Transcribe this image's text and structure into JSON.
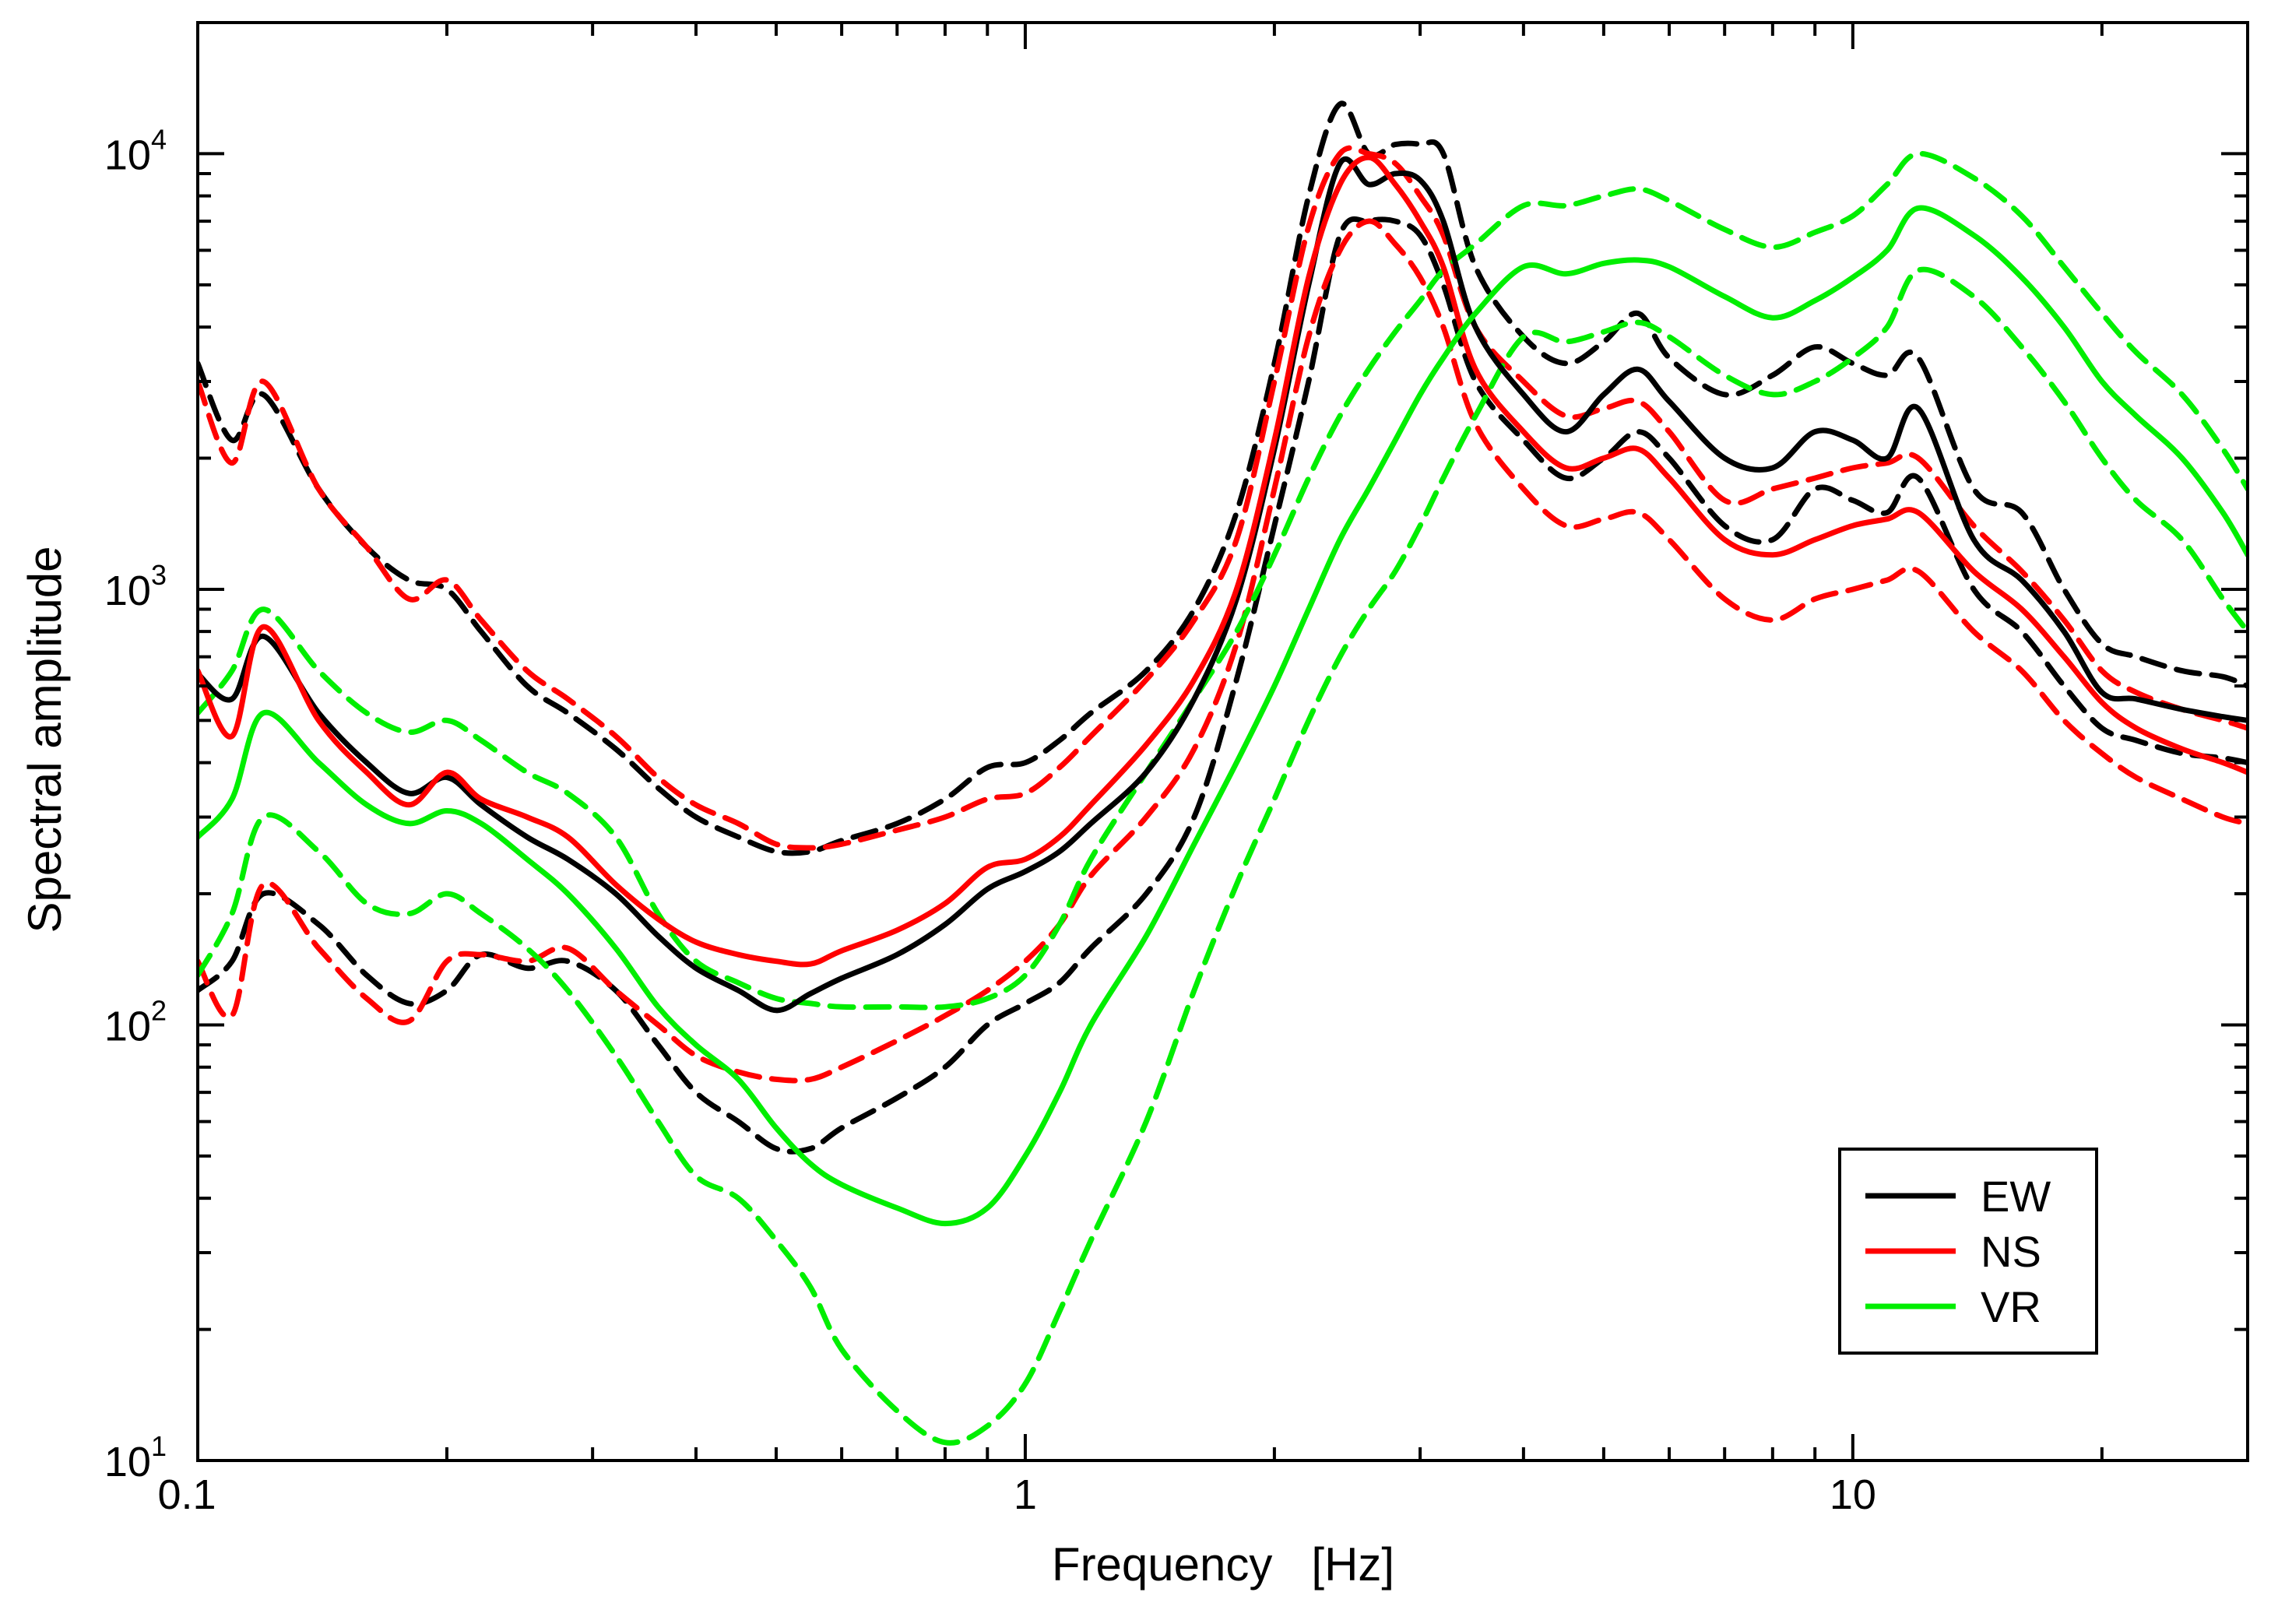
{
  "chart_data": {
    "type": "line",
    "xscale": "log",
    "yscale": "log",
    "xlabel": "Frequency   [Hz]",
    "ylabel": "Spectral amplitude",
    "xlim": [
      0.1,
      30
    ],
    "ylim": [
      10,
      20000
    ],
    "x_ticks": [
      {
        "value": 0.1,
        "label": "0.1"
      },
      {
        "value": 1,
        "label": "1"
      },
      {
        "value": 10,
        "label": "10"
      }
    ],
    "y_ticks": [
      {
        "value": 10,
        "base": "10",
        "exp": "1"
      },
      {
        "value": 100,
        "base": "10",
        "exp": "2"
      },
      {
        "value": 1000,
        "base": "10",
        "exp": "3"
      },
      {
        "value": 10000,
        "base": "10",
        "exp": "4"
      }
    ],
    "x_corner_label": "0.1",
    "y_corner_label": "10",
    "legend": [
      {
        "label": "EW",
        "color": "#000000"
      },
      {
        "label": "NS",
        "color": "#ff0000"
      },
      {
        "label": "VR",
        "color": "#00ee00"
      }
    ],
    "x": [
      0.1,
      0.11,
      0.12,
      0.14,
      0.16,
      0.18,
      0.2,
      0.22,
      0.25,
      0.28,
      0.32,
      0.36,
      0.4,
      0.45,
      0.5,
      0.55,
      0.6,
      0.7,
      0.8,
      0.9,
      1.0,
      1.1,
      1.2,
      1.4,
      1.6,
      1.8,
      2.0,
      2.2,
      2.4,
      2.6,
      2.8,
      3.0,
      3.2,
      3.5,
      4.0,
      4.5,
      5.0,
      5.5,
      6.0,
      7.0,
      8.0,
      9.0,
      10.0,
      11.0,
      12.0,
      14.0,
      16.0,
      18.0,
      20.0,
      22.0,
      25.0,
      28.0,
      30.0
    ],
    "series": [
      {
        "name": "EW",
        "style": "solid",
        "color": "#000000",
        "values": [
          640,
          560,
          780,
          520,
          400,
          340,
          370,
          320,
          270,
          240,
          200,
          160,
          135,
          120,
          108,
          118,
          128,
          145,
          170,
          205,
          225,
          250,
          290,
          380,
          560,
          950,
          2100,
          5000,
          9500,
          8500,
          9000,
          8700,
          7000,
          4000,
          2800,
          2300,
          2800,
          3200,
          2700,
          2000,
          1900,
          2300,
          2200,
          2000,
          2600,
          1300,
          1050,
          800,
          580,
          560,
          530,
          510,
          500
        ]
      },
      {
        "name": "EW mean+σ",
        "style": "dashed",
        "color": "#000000",
        "values": [
          3300,
          2200,
          2800,
          1700,
          1250,
          1050,
          1000,
          800,
          600,
          520,
          430,
          350,
          300,
          270,
          250,
          250,
          265,
          290,
          330,
          390,
          400,
          450,
          520,
          650,
          900,
          1500,
          3300,
          8000,
          13000,
          10000,
          10500,
          10500,
          10000,
          5500,
          3800,
          3300,
          3700,
          4300,
          3400,
          2800,
          3100,
          3600,
          3300,
          3100,
          3400,
          1700,
          1500,
          1000,
          750,
          700,
          650,
          630,
          600
        ]
      },
      {
        "name": "EW mean−σ",
        "style": "dashed",
        "color": "#000000",
        "values": [
          120,
          140,
          200,
          170,
          130,
          112,
          120,
          145,
          135,
          140,
          120,
          90,
          70,
          60,
          52,
          52,
          58,
          68,
          80,
          100,
          112,
          125,
          150,
          200,
          300,
          620,
          1400,
          3000,
          6500,
          7000,
          7000,
          6500,
          5000,
          3000,
          2200,
          1800,
          2000,
          2300,
          2000,
          1400,
          1300,
          1700,
          1600,
          1500,
          1800,
          1000,
          800,
          600,
          480,
          450,
          420,
          410,
          400
        ]
      },
      {
        "name": "NS",
        "style": "solid",
        "color": "#ff0000",
        "values": [
          650,
          460,
          820,
          500,
          380,
          320,
          380,
          330,
          300,
          270,
          210,
          175,
          155,
          145,
          140,
          138,
          148,
          165,
          190,
          230,
          240,
          270,
          320,
          440,
          620,
          1000,
          2200,
          5200,
          8500,
          9800,
          8500,
          7000,
          5500,
          3200,
          2300,
          1900,
          2000,
          2100,
          1800,
          1300,
          1200,
          1300,
          1400,
          1450,
          1500,
          1100,
          900,
          700,
          550,
          480,
          430,
          400,
          380
        ]
      },
      {
        "name": "NS mean+σ",
        "style": "dashed",
        "color": "#ff0000",
        "values": [
          3000,
          1950,
          3000,
          1700,
          1250,
          950,
          1050,
          850,
          650,
          560,
          460,
          370,
          320,
          290,
          260,
          255,
          260,
          280,
          300,
          330,
          340,
          390,
          460,
          620,
          850,
          1300,
          3000,
          6800,
          10000,
          10000,
          9500,
          8000,
          6500,
          4000,
          3000,
          2500,
          2600,
          2700,
          2300,
          1600,
          1700,
          1800,
          1900,
          1950,
          2000,
          1400,
          1100,
          850,
          650,
          580,
          530,
          500,
          480
        ]
      },
      {
        "name": "NS mean−σ",
        "style": "dashed",
        "color": "#ff0000",
        "values": [
          140,
          105,
          210,
          150,
          115,
          102,
          140,
          145,
          140,
          150,
          120,
          100,
          85,
          78,
          75,
          75,
          80,
          92,
          105,
          120,
          140,
          170,
          220,
          300,
          430,
          750,
          1700,
          3800,
          6000,
          7000,
          6200,
          5200,
          4000,
          2400,
          1700,
          1400,
          1450,
          1500,
          1300,
          950,
          850,
          950,
          1000,
          1050,
          1100,
          800,
          650,
          500,
          420,
          370,
          330,
          300,
          290
        ]
      },
      {
        "name": "VR",
        "style": "solid",
        "color": "#00ee00",
        "values": [
          270,
          330,
          520,
          400,
          320,
          290,
          310,
          290,
          240,
          200,
          150,
          110,
          90,
          75,
          58,
          48,
          43,
          38,
          35,
          38,
          50,
          70,
          100,
          160,
          260,
          400,
          600,
          900,
          1300,
          1700,
          2200,
          2800,
          3400,
          4300,
          5500,
          5300,
          5600,
          5700,
          5500,
          4700,
          4200,
          4600,
          5200,
          6000,
          7500,
          6500,
          5200,
          4000,
          3000,
          2500,
          2000,
          1500,
          1200
        ]
      },
      {
        "name": "VR mean+σ",
        "style": "dashed",
        "color": "#00ee00",
        "values": [
          520,
          650,
          900,
          650,
          520,
          470,
          500,
          450,
          380,
          340,
          270,
          180,
          140,
          125,
          115,
          112,
          110,
          110,
          110,
          115,
          130,
          170,
          240,
          380,
          560,
          800,
          1200,
          1800,
          2500,
          3200,
          3900,
          4600,
          5400,
          6200,
          7600,
          7600,
          8000,
          8300,
          7800,
          6700,
          6100,
          6600,
          7200,
          8500,
          10000,
          8800,
          7200,
          5500,
          4300,
          3500,
          2800,
          2100,
          1700
        ]
      },
      {
        "name": "VR mean−σ",
        "style": "dashed",
        "color": "#00ee00",
        "values": [
          130,
          180,
          300,
          250,
          190,
          180,
          200,
          180,
          150,
          120,
          85,
          60,
          45,
          40,
          32,
          25,
          18,
          13,
          11,
          12,
          15,
          22,
          32,
          60,
          120,
          210,
          330,
          500,
          700,
          900,
          1100,
          1400,
          1800,
          2500,
          3800,
          3700,
          3900,
          4100,
          3800,
          3100,
          2800,
          3000,
          3400,
          4000,
          5400,
          4700,
          3600,
          2700,
          2000,
          1600,
          1300,
          950,
          800
        ]
      }
    ]
  }
}
